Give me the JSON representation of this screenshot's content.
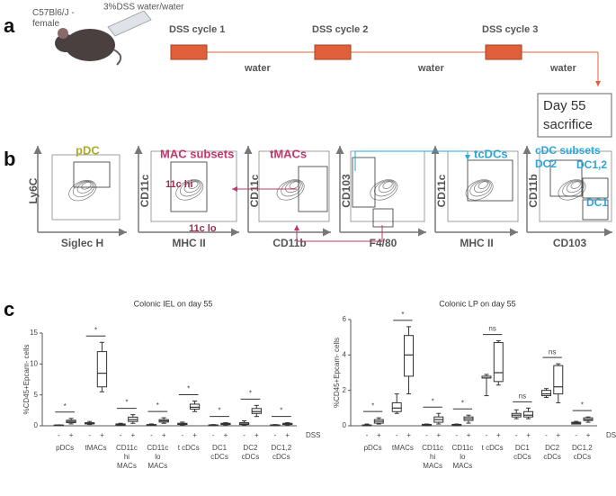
{
  "panel_labels": [
    "a",
    "b",
    "c"
  ],
  "panel_a": {
    "mouse_label": "C57Bl6/J -\nfemale",
    "treatment": "3%DSS water/water",
    "cycles": [
      "DSS cycle 1",
      "DSS cycle 2",
      "DSS cycle 3"
    ],
    "breaks": [
      "water",
      "water",
      "water"
    ],
    "endpoint": [
      "Day 55",
      "sacrifice"
    ]
  },
  "panel_b": {
    "plots": [
      {
        "y_label": "Ly6C",
        "x_label": "Siglec H"
      },
      {
        "y_label": "CD11c",
        "x_label": "MHC II"
      },
      {
        "y_label": "CD11c",
        "x_label": "CD11b"
      },
      {
        "y_label": "CD103",
        "x_label": "F4/80"
      },
      {
        "y_label": "CD11c",
        "x_label": "MHC II"
      },
      {
        "y_label": "CD11b",
        "x_label": "CD103"
      }
    ],
    "gates": [
      "pDC",
      "MAC subsets",
      "11c hi",
      "11c lo",
      "tMACs",
      "tcDCs",
      "cDC subsets",
      "DC2",
      "DC1,2",
      "DC1"
    ]
  },
  "chart_data": [
    {
      "type": "box",
      "title": "Colonic IEL on day 55",
      "y_label": "%CD45+Epcam- cells",
      "condition_labels": [
        "-",
        "+"
      ],
      "condition_name": "DSS",
      "ylim": [
        0,
        15
      ],
      "yticks": [
        0,
        5,
        10,
        15
      ],
      "color": "#333333",
      "groups": [
        {
          "label": [
            "pDCs"
          ],
          "significance": "*",
          "boxes": [
            {
              "min": 0.05,
              "q1": 0.08,
              "median": 0.1,
              "q3": 0.12,
              "max": 0.15
            },
            {
              "min": 0.3,
              "q1": 0.5,
              "median": 0.7,
              "q3": 0.9,
              "max": 1.2
            }
          ]
        },
        {
          "label": [
            "tMACs"
          ],
          "significance": "*",
          "boxes": [
            {
              "min": 0.2,
              "q1": 0.3,
              "median": 0.4,
              "q3": 0.5,
              "max": 0.7
            },
            {
              "min": 5.5,
              "q1": 6.3,
              "median": 8.5,
              "q3": 12,
              "max": 13.5
            }
          ]
        },
        {
          "label": [
            "CD11c",
            "hi",
            "MACs"
          ],
          "significance": "*",
          "boxes": [
            {
              "min": 0.1,
              "q1": 0.1,
              "median": 0.2,
              "q3": 0.3,
              "max": 0.4
            },
            {
              "min": 0.4,
              "q1": 0.7,
              "median": 1,
              "q3": 1.4,
              "max": 1.8
            }
          ]
        },
        {
          "label": [
            "CD11c",
            "lo",
            "MACs"
          ],
          "significance": "*",
          "boxes": [
            {
              "min": 0.1,
              "q1": 0.1,
              "median": 0.15,
              "q3": 0.2,
              "max": 0.3
            },
            {
              "min": 0.4,
              "q1": 0.6,
              "median": 0.8,
              "q3": 1,
              "max": 1.3
            }
          ]
        },
        {
          "label": [
            "t cDCs"
          ],
          "significance": "*",
          "boxes": [
            {
              "min": 0.1,
              "q1": 0.2,
              "median": 0.3,
              "q3": 0.4,
              "max": 0.6
            },
            {
              "min": 2.3,
              "q1": 2.7,
              "median": 3,
              "q3": 3.5,
              "max": 4
            }
          ]
        },
        {
          "label": [
            "DC1",
            "cDCs"
          ],
          "significance": "*",
          "boxes": [
            {
              "min": 0,
              "q1": 0.05,
              "median": 0.1,
              "q3": 0.15,
              "max": 0.2
            },
            {
              "min": 0.1,
              "q1": 0.2,
              "median": 0.3,
              "q3": 0.4,
              "max": 0.5
            }
          ]
        },
        {
          "label": [
            "DC2",
            "cDCs"
          ],
          "significance": "*",
          "boxes": [
            {
              "min": 0.1,
              "q1": 0.2,
              "median": 0.3,
              "q3": 0.5,
              "max": 0.8
            },
            {
              "min": 1.5,
              "q1": 2,
              "median": 2.3,
              "q3": 2.8,
              "max": 3.3
            }
          ]
        },
        {
          "label": [
            "DC1,2",
            "cDCs"
          ],
          "significance": "*",
          "boxes": [
            {
              "min": 0,
              "q1": 0.05,
              "median": 0.1,
              "q3": 0.15,
              "max": 0.2
            },
            {
              "min": 0.1,
              "q1": 0.2,
              "median": 0.3,
              "q3": 0.4,
              "max": 0.5
            }
          ]
        }
      ]
    },
    {
      "type": "box",
      "title": "Colonic LP on day 55",
      "y_label": "%CD45+Epcam- cells",
      "condition_labels": [
        "-",
        "+"
      ],
      "condition_name": "DSS",
      "ylim": [
        0,
        6
      ],
      "yticks": [
        0,
        2,
        4,
        6
      ],
      "color": "#333333",
      "groups": [
        {
          "label": [
            "pDCs"
          ],
          "significance": "*",
          "boxes": [
            {
              "min": 0,
              "q1": 0,
              "median": 0.02,
              "q3": 0.05,
              "max": 0.1
            },
            {
              "min": 0.1,
              "q1": 0.15,
              "median": 0.25,
              "q3": 0.35,
              "max": 0.45
            }
          ]
        },
        {
          "label": [
            "tMACs"
          ],
          "significance": "*",
          "boxes": [
            {
              "min": 0.7,
              "q1": 0.8,
              "median": 1,
              "q3": 1.3,
              "max": 1.8
            },
            {
              "min": 1.8,
              "q1": 2.8,
              "median": 4,
              "q3": 5.1,
              "max": 5.6
            }
          ]
        },
        {
          "label": [
            "CD11c",
            "hi",
            "MACs"
          ],
          "significance": "*",
          "boxes": [
            {
              "min": 0,
              "q1": 0.02,
              "median": 0.05,
              "q3": 0.08,
              "max": 0.1
            },
            {
              "min": 0.1,
              "q1": 0.2,
              "median": 0.35,
              "q3": 0.5,
              "max": 0.7
            }
          ]
        },
        {
          "label": [
            "CD11c",
            "lo",
            "MACs"
          ],
          "significance": "*",
          "boxes": [
            {
              "min": 0,
              "q1": 0.02,
              "median": 0.05,
              "q3": 0.08,
              "max": 0.1
            },
            {
              "min": 0.15,
              "q1": 0.3,
              "median": 0.4,
              "q3": 0.5,
              "max": 0.6
            }
          ]
        },
        {
          "label": [
            "t cDCs"
          ],
          "significance": "ns",
          "boxes": [
            {
              "min": 1.7,
              "q1": 2.7,
              "median": 2.7,
              "q3": 2.8,
              "max": 2.9
            },
            {
              "min": 2.3,
              "q1": 2.5,
              "median": 3,
              "q3": 4.7,
              "max": 4.8
            }
          ]
        },
        {
          "label": [
            "DC1",
            "cDCs"
          ],
          "significance": "ns",
          "boxes": [
            {
              "min": 0.4,
              "q1": 0.5,
              "median": 0.6,
              "q3": 0.7,
              "max": 0.9
            },
            {
              "min": 0.4,
              "q1": 0.5,
              "median": 0.6,
              "q3": 0.8,
              "max": 1
            }
          ]
        },
        {
          "label": [
            "DC2",
            "cDCs"
          ],
          "significance": "ns",
          "boxes": [
            {
              "min": 1.6,
              "q1": 1.7,
              "median": 1.8,
              "q3": 2,
              "max": 2.1
            },
            {
              "min": 1.3,
              "q1": 1.8,
              "median": 2.2,
              "q3": 3.4,
              "max": 3.5
            }
          ]
        },
        {
          "label": [
            "DC1,2",
            "cDCs"
          ],
          "significance": "*",
          "boxes": [
            {
              "min": 0.1,
              "q1": 0.1,
              "median": 0.15,
              "q3": 0.2,
              "max": 0.25
            },
            {
              "min": 0.2,
              "q1": 0.3,
              "median": 0.35,
              "q3": 0.45,
              "max": 0.5
            }
          ]
        }
      ]
    }
  ]
}
